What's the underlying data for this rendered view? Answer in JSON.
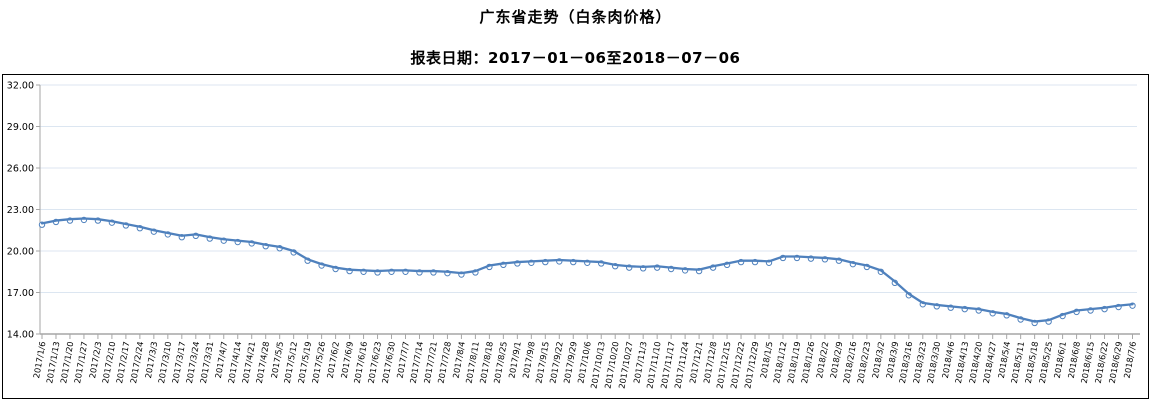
{
  "page": {
    "title": "广东省走势（白条肉价格）",
    "subtitle": "报表日期：2017－01－06至2018－07－06"
  },
  "colors": {
    "line": "#4f81bd",
    "marker_fill": "#ffffff",
    "grid": "#dce6f1",
    "axis": "#a6a6a6",
    "text": "#000000",
    "border": "#000000"
  },
  "chart_data": {
    "type": "line",
    "title": "广东省走势（白条肉价格）",
    "subtitle": "报表日期：2017－01－06至2018－07－06",
    "legend": null,
    "grid": true,
    "ylim": [
      14,
      32
    ],
    "ytick_step": 3,
    "ytick_labels": [
      "32.00",
      "29.00",
      "26.00",
      "23.00",
      "20.00",
      "17.00",
      "14.00"
    ],
    "x": [
      "2017/1/6",
      "2017/1/13",
      "2017/1/20",
      "2017/1/27",
      "2017/2/3",
      "2017/2/10",
      "2017/2/17",
      "2017/2/24",
      "2017/3/3",
      "2017/3/10",
      "2017/3/17",
      "2017/3/24",
      "2017/3/31",
      "2017/4/7",
      "2017/4/14",
      "2017/4/21",
      "2017/4/28",
      "2017/5/5",
      "2017/5/12",
      "2017/5/19",
      "2017/5/26",
      "2017/6/2",
      "2017/6/9",
      "2017/6/16",
      "2017/6/23",
      "2017/6/30",
      "2017/7/7",
      "2017/7/14",
      "2017/7/21",
      "2017/7/28",
      "2017/8/4",
      "2017/8/11",
      "2017/8/18",
      "2017/8/25",
      "2017/9/1",
      "2017/9/8",
      "2017/9/15",
      "2017/9/22",
      "2017/9/29",
      "2017/10/6",
      "2017/10/13",
      "2017/10/20",
      "2017/10/27",
      "2017/11/3",
      "2017/11/10",
      "2017/11/17",
      "2017/11/24",
      "2017/12/1",
      "2017/12/8",
      "2017/12/15",
      "2017/12/22",
      "2017/12/29",
      "2018/1/5",
      "2018/1/12",
      "2018/1/19",
      "2018/1/26",
      "2018/2/2",
      "2018/2/9",
      "2018/2/16",
      "2018/2/23",
      "2018/3/2",
      "2018/3/9",
      "2018/3/16",
      "2018/3/23",
      "2018/3/30",
      "2018/4/6",
      "2018/4/13",
      "2018/4/20",
      "2018/4/27",
      "2018/5/4",
      "2018/5/11",
      "2018/5/18",
      "2018/5/25",
      "2018/6/1",
      "2018/6/8",
      "2018/6/15",
      "2018/6/22",
      "2018/6/29",
      "2018/7/6"
    ],
    "values": [
      22.0,
      22.2,
      22.3,
      22.35,
      22.3,
      22.15,
      21.95,
      21.75,
      21.5,
      21.3,
      21.1,
      21.2,
      21.0,
      20.85,
      20.75,
      20.65,
      20.45,
      20.3,
      20.0,
      19.4,
      19.05,
      18.8,
      18.65,
      18.6,
      18.55,
      18.6,
      18.6,
      18.55,
      18.55,
      18.5,
      18.4,
      18.55,
      18.95,
      19.1,
      19.2,
      19.25,
      19.3,
      19.35,
      19.3,
      19.25,
      19.2,
      19.0,
      18.9,
      18.85,
      18.9,
      18.8,
      18.7,
      18.65,
      18.9,
      19.1,
      19.3,
      19.3,
      19.25,
      19.6,
      19.6,
      19.55,
      19.5,
      19.4,
      19.15,
      18.95,
      18.6,
      17.8,
      16.9,
      16.25,
      16.1,
      16.0,
      15.9,
      15.8,
      15.6,
      15.45,
      15.15,
      14.9,
      15.0,
      15.4,
      15.7,
      15.8,
      15.9,
      16.05,
      16.15
    ]
  }
}
